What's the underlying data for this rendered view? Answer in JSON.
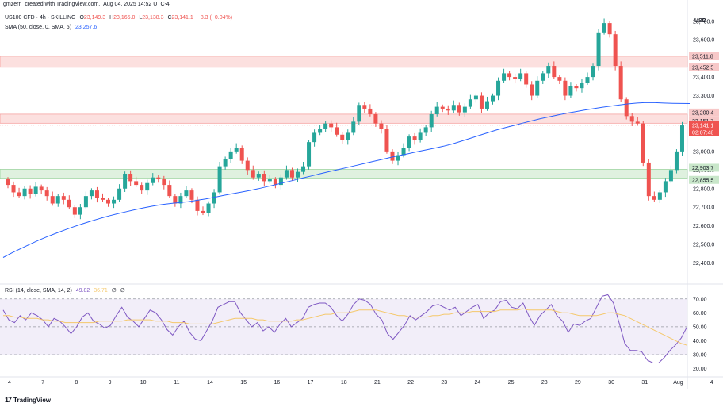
{
  "caption": {
    "user": "gmzern",
    "text": "created with TradingView.com,",
    "date": "Aug 04, 2025 14:52 UTC-4"
  },
  "legend": {
    "symbol": "US100 CFD · 4h · SKILLING",
    "o_label": "O",
    "o": "23,149.3",
    "h_label": "H",
    "h": "23,165.0",
    "l_label": "L",
    "l": "23,138.3",
    "c_label": "C",
    "c": "23,141.1",
    "chg": "−8.3 (−0.04%)",
    "sma_label": "SMA (50, close, 0, SMA, 5)",
    "sma_value": "23,257.6",
    "rsi_label": "RSI (14, close, SMA, 14, 2)",
    "rsi_value": "49.82",
    "rsi_ma": "36.71",
    "rsi_x1": "∅",
    "rsi_x2": "∅"
  },
  "currency": "USD",
  "footer": {
    "logo_text": "TradingView"
  },
  "colors": {
    "up": "#26a69a",
    "down": "#ef5350",
    "sma": "#2962ff",
    "rsi": "#7e57c2",
    "rsi_ma": "#f5c86b",
    "zone_red": "#ef5350",
    "zone_green": "#4caf50"
  },
  "chart_data": [
    {
      "type": "candlestick",
      "title": "US100 CFD · 4h · SKILLING",
      "y_unit": "USD",
      "ylim": [
        22300,
        23780
      ],
      "y_ticks": [
        "23,700.0",
        "23,600.0",
        "23,500.0",
        "23,400.0",
        "23,300.0",
        "23,200.0",
        "23,100.0",
        "23,000.0",
        "22,900.0",
        "22,800.0",
        "22,700.0",
        "22,600.0",
        "22,500.0",
        "22,400.0"
      ],
      "y_tick_values": [
        23700,
        23600,
        23500,
        23400,
        23300,
        23200,
        23100,
        23000,
        22900,
        22800,
        22700,
        22600,
        22500,
        22400
      ],
      "x_ticks": [
        "4",
        "7",
        "8",
        "9",
        "10",
        "11",
        "14",
        "15",
        "16",
        "17",
        "18",
        "21",
        "22",
        "23",
        "24",
        "25",
        "28",
        "29",
        "30",
        "31",
        "Aug",
        "4"
      ],
      "candles_per_day": 6,
      "close": [
        22820,
        22780,
        22760,
        22800,
        22770,
        22810,
        22790,
        22760,
        22720,
        22760,
        22740,
        22700,
        22660,
        22700,
        22760,
        22790,
        22750,
        22740,
        22720,
        22740,
        22800,
        22880,
        22840,
        22820,
        22790,
        22830,
        22860,
        22850,
        22820,
        22760,
        22720,
        22760,
        22790,
        22740,
        22680,
        22670,
        22720,
        22780,
        22920,
        22960,
        23000,
        23020,
        22950,
        22900,
        22860,
        22880,
        22840,
        22850,
        22820,
        22860,
        22900,
        22860,
        22890,
        22920,
        23050,
        23100,
        23120,
        23150,
        23130,
        23090,
        23060,
        23100,
        23160,
        23250,
        23230,
        23200,
        23150,
        23120,
        23000,
        22950,
        22980,
        23020,
        23080,
        23060,
        23100,
        23130,
        23200,
        23240,
        23230,
        23220,
        23250,
        23210,
        23240,
        23280,
        23300,
        23230,
        23270,
        23300,
        23380,
        23420,
        23400,
        23390,
        23420,
        23360,
        23300,
        23380,
        23420,
        23460,
        23400,
        23380,
        23300,
        23350,
        23340,
        23370,
        23400,
        23460,
        23640,
        23690,
        23630,
        23460,
        23280,
        23190,
        23160,
        23150,
        22940,
        22760,
        22740,
        22780,
        22840,
        22900,
        23000,
        23140
      ],
      "open_first": 22850,
      "series": [
        {
          "name": "SMA (50, close, 0, SMA, 5)",
          "value": [
            22430,
            22455,
            22478,
            22500,
            22522,
            22542,
            22560,
            22578,
            22595,
            22611,
            22626,
            22640,
            22653,
            22665,
            22676,
            22687,
            22697,
            22706,
            22714,
            22720,
            22725,
            22730,
            22737,
            22745,
            22754,
            22763,
            22772,
            22781,
            22790,
            22800,
            22811,
            22822,
            22834,
            22845,
            22857,
            22868,
            22880,
            22891,
            22902,
            22913,
            22924,
            22935,
            22946,
            22957,
            22968,
            22978,
            22988,
            22998,
            23008,
            23018,
            23028,
            23040,
            23055,
            23070,
            23085,
            23100,
            23115,
            23128,
            23140,
            23152,
            23164,
            23176,
            23186,
            23196,
            23206,
            23214,
            23222,
            23230,
            23237,
            23244,
            23250,
            23256,
            23260,
            23263,
            23262,
            23260,
            23259,
            23258,
            23257.6
          ]
        }
      ],
      "price_tags": [
        {
          "label": "23,511.8",
          "value": 23511.8,
          "kind": "zone-red"
        },
        {
          "label": "23,452.5",
          "value": 23452.5,
          "kind": "zone-red"
        },
        {
          "label": "23,200.4",
          "value": 23200.4,
          "kind": "zone-red"
        },
        {
          "label": "23,151.7",
          "value": 23151.7,
          "kind": "zone-red"
        },
        {
          "label": "23,141.1",
          "value": 23141.1,
          "kind": "last"
        },
        {
          "label": "02:07:48",
          "value": 23141.1,
          "kind": "countdown"
        },
        {
          "label": "22,903.7",
          "value": 22903.7,
          "kind": "zone-green"
        },
        {
          "label": "22,855.5",
          "value": 22855.5,
          "kind": "zone-green"
        }
      ],
      "zones": [
        {
          "from": 23452.5,
          "to": 23511.8,
          "color": "red"
        },
        {
          "from": 23151.7,
          "to": 23200.4,
          "color": "red"
        },
        {
          "from": 22855.5,
          "to": 22903.7,
          "color": "green"
        }
      ]
    },
    {
      "type": "line",
      "title": "RSI (14, close, SMA, 14, 2)",
      "ylim": [
        18,
        75
      ],
      "y_ticks": [
        "70.00",
        "60.00",
        "50.00",
        "40.00",
        "30.00",
        "20.00"
      ],
      "y_tick_values": [
        70,
        60,
        50,
        40,
        30,
        20
      ],
      "levels": [
        70,
        50,
        30
      ],
      "series": [
        {
          "name": "RSI",
          "value": [
            62,
            55,
            53,
            58,
            55,
            60,
            58,
            55,
            50,
            56,
            54,
            50,
            45,
            50,
            57,
            60,
            54,
            52,
            49,
            51,
            58,
            64,
            57,
            54,
            50,
            56,
            62,
            60,
            55,
            48,
            44,
            50,
            54,
            46,
            41,
            40,
            47,
            54,
            64,
            66,
            68,
            68,
            60,
            55,
            50,
            53,
            47,
            50,
            46,
            52,
            56,
            50,
            53,
            56,
            64,
            66,
            67,
            67,
            64,
            58,
            54,
            59,
            66,
            70,
            69,
            66,
            59,
            55,
            45,
            41,
            46,
            51,
            58,
            55,
            58,
            61,
            65,
            66,
            64,
            62,
            64,
            58,
            61,
            64,
            66,
            56,
            60,
            62,
            68,
            69,
            64,
            63,
            67,
            58,
            51,
            58,
            62,
            66,
            58,
            54,
            46,
            52,
            51,
            54,
            56,
            64,
            72,
            73,
            67,
            53,
            38,
            33,
            33,
            32,
            26,
            24,
            24,
            28,
            33,
            37,
            42,
            49.82
          ]
        },
        {
          "name": "RSI-based MA",
          "value": [
            58,
            58,
            57,
            57,
            56,
            56,
            56,
            55,
            55,
            54,
            54,
            53,
            53,
            53,
            53,
            53,
            53,
            54,
            54,
            54,
            54,
            54,
            55,
            55,
            55,
            55,
            55,
            54,
            54,
            54,
            53,
            53,
            53,
            52,
            52,
            52,
            52,
            52,
            53,
            54,
            55,
            56,
            56,
            56,
            56,
            55,
            55,
            54,
            54,
            54,
            54,
            54,
            55,
            55,
            56,
            57,
            58,
            59,
            59,
            60,
            60,
            60,
            61,
            62,
            62,
            62,
            62,
            61,
            60,
            59,
            58,
            58,
            57,
            57,
            57,
            57,
            58,
            58,
            59,
            59,
            60,
            60,
            60,
            61,
            61,
            61,
            61,
            61,
            62,
            62,
            62,
            62,
            63,
            62,
            62,
            62,
            62,
            62,
            61,
            60,
            60,
            59,
            58,
            58,
            58,
            58,
            59,
            60,
            60,
            59,
            58,
            56,
            54,
            52,
            50,
            48,
            46,
            44,
            42,
            40,
            38,
            36.71
          ]
        }
      ]
    }
  ]
}
